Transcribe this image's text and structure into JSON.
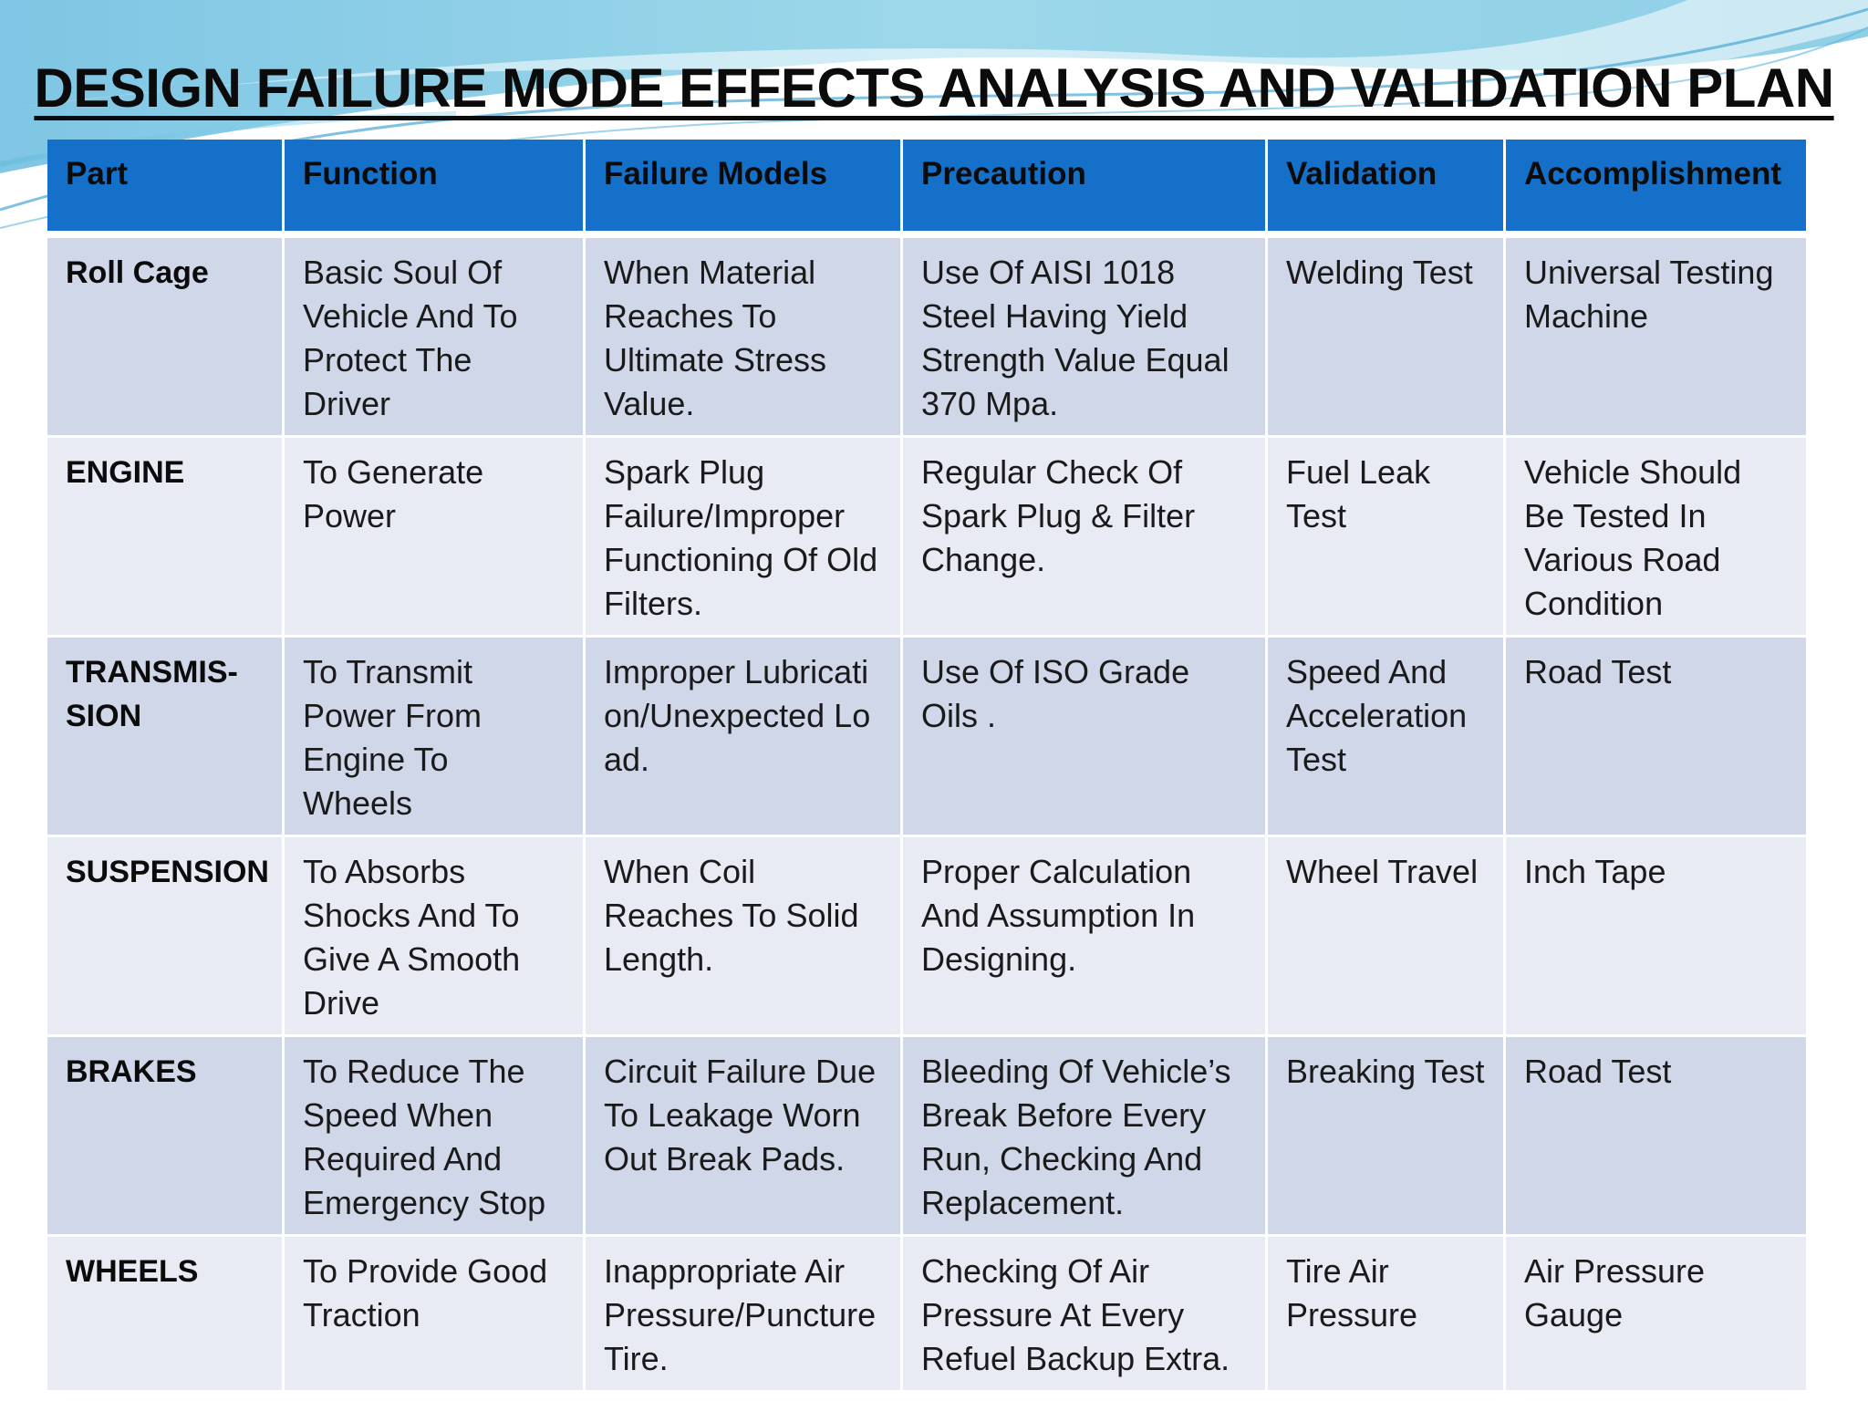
{
  "title": "DESIGN FAILURE MODE EFFECTS ANALYSIS AND VALIDATION PLAN",
  "colors": {
    "header_bg": "#1470c8",
    "row_dark": "#d0d7e9",
    "row_light": "#e8ebf4",
    "swoosh_teal": "#8fd6e6",
    "swoosh_blue": "#7fb8dc"
  },
  "table": {
    "headers": [
      "Part",
      "Function",
      "Failure Models",
      "Precaution",
      "Validation",
      "Accomplishment"
    ],
    "rows": [
      {
        "part": "Roll Cage",
        "function": "Basic Soul Of Vehicle And To Protect The Driver",
        "failure": "When Material Reaches To Ultimate Stress Value.",
        "precaution": "Use Of AISI 1018 Steel Having Yield Strength Value Equal 370 Mpa.",
        "validation": "Welding Test",
        "accomplishment": "Universal Testing Machine"
      },
      {
        "part": "ENGINE",
        "function": "To Generate Power",
        "failure": "Spark Plug Failure/Improper Functioning Of Old Filters.",
        "precaution": "Regular Check Of Spark Plug & Filter Change.",
        "validation": "Fuel Leak Test",
        "accomplishment": "Vehicle Should Be Tested In Various Road Condition"
      },
      {
        "part": "TRANSMIS-SION",
        "function": "To Transmit Power From Engine To Wheels",
        "failure": "Improper Lubrication/Unexpected Load.",
        "precaution": "Use Of ISO Grade Oils .",
        "validation": "Speed And Acceleration Test",
        "accomplishment": "Road Test"
      },
      {
        "part": "SUSPENSION",
        "function": "To Absorbs Shocks  And To Give A Smooth Drive",
        "failure": "When Coil Reaches To Solid Length.",
        "precaution": "Proper Calculation And Assumption In Designing.",
        "validation": "Wheel Travel",
        "accomplishment": "Inch Tape"
      },
      {
        "part": "BRAKES",
        "function": "To Reduce The Speed When Required And Emergency Stop",
        "failure": "Circuit Failure Due To Leakage Worn Out Break Pads.",
        "precaution": "Bleeding Of Vehicle’s Break Before Every Run, Checking  And Replacement.",
        "validation": "Breaking Test",
        "accomplishment": "Road Test"
      },
      {
        "part": "WHEELS",
        "function": "To Provide Good Traction",
        "failure": "Inappropriate Air Pressure/Puncture Tire.",
        "precaution": "Checking Of Air Pressure At Every Refuel Backup Extra.",
        "validation": "Tire Air Pressure",
        "accomplishment": "Air Pressure Gauge"
      }
    ]
  }
}
